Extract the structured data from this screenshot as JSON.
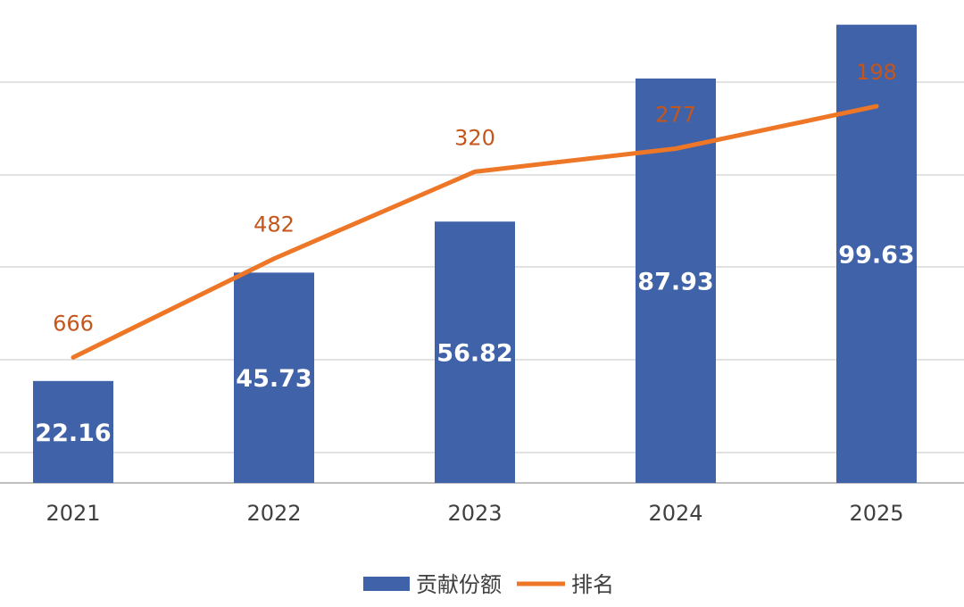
{
  "chart_data": {
    "type": "bar",
    "categories": [
      "2021",
      "2022",
      "2023",
      "2024",
      "2025"
    ],
    "series": [
      {
        "name": "贡献份额",
        "type": "bar",
        "values": [
          22.16,
          45.73,
          56.82,
          87.93,
          99.63
        ],
        "labels": [
          "22.16",
          "45.73",
          "56.82",
          "87.93",
          "99.63"
        ],
        "color": "#4062A8"
      },
      {
        "name": "排名",
        "type": "line",
        "values": [
          666,
          482,
          320,
          277,
          198
        ],
        "labels": [
          "666",
          "482",
          "320",
          "277",
          "198"
        ],
        "color": "#EE7727",
        "label_color": "#C4561C",
        "axis": "secondary-reversed"
      }
    ],
    "ylim": [
      0,
      105
    ],
    "y2lim": [
      0,
      900
    ],
    "y2_reversed": true,
    "grid": true,
    "legend_position": "bottom-center",
    "colors": {
      "grid": "#D9D9D9",
      "axis": "#BFBFBF",
      "tick_text": "#404040",
      "bar_label": "#FFFFFF"
    }
  }
}
